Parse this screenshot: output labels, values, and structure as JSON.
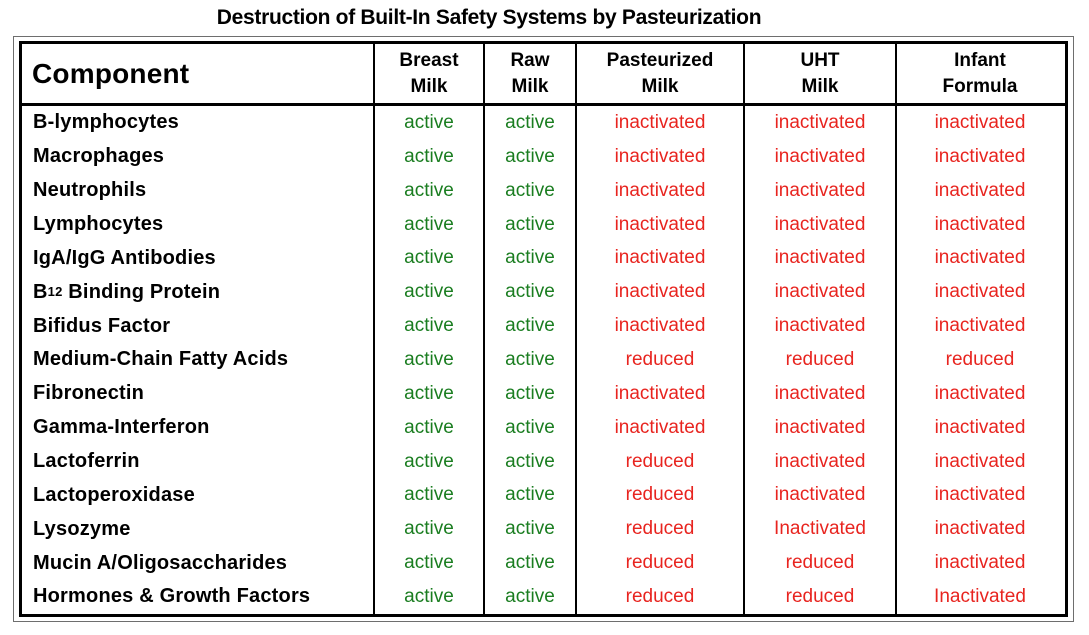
{
  "title": "Destruction of Built-In Safety Systems by Pasteurization",
  "colors": {
    "active_green": "#1a7d20",
    "destroyed_red": "#e8241f",
    "text_black": "#000000",
    "border_black": "#000000"
  },
  "table": {
    "component_header": "Component",
    "milk_columns": [
      {
        "line1": "Breast",
        "line2": "Milk"
      },
      {
        "line1": "Raw",
        "line2": "Milk"
      },
      {
        "line1": "Pasteurized",
        "line2": "Milk"
      },
      {
        "line1": "UHT",
        "line2": "Milk"
      },
      {
        "line1": "Infant",
        "line2": "Formula"
      }
    ],
    "rows": [
      {
        "name": "B-lymphocytes",
        "values": [
          "active",
          "active",
          "inactivated",
          "inactivated",
          "inactivated"
        ]
      },
      {
        "name": "Macrophages",
        "values": [
          "active",
          "active",
          "inactivated",
          "inactivated",
          "inactivated"
        ]
      },
      {
        "name": "Neutrophils",
        "values": [
          "active",
          "active",
          "inactivated",
          "inactivated",
          "inactivated"
        ]
      },
      {
        "name": "Lymphocytes",
        "values": [
          "active",
          "active",
          "inactivated",
          "inactivated",
          "inactivated"
        ]
      },
      {
        "name": "IgA/IgG Antibodies",
        "values": [
          "active",
          "active",
          "inactivated",
          "inactivated",
          "inactivated"
        ]
      },
      {
        "name": "B",
        "sub": "12",
        "rest": " Binding Protein",
        "values": [
          "active",
          "active",
          "inactivated",
          "inactivated",
          "inactivated"
        ]
      },
      {
        "name": "Bifidus Factor",
        "values": [
          "active",
          "active",
          "inactivated",
          "inactivated",
          "inactivated"
        ]
      },
      {
        "name": "Medium-Chain Fatty Acids",
        "values": [
          "active",
          "active",
          "reduced",
          "reduced",
          "reduced"
        ]
      },
      {
        "name": "Fibronectin",
        "values": [
          "active",
          "active",
          "inactivated",
          "inactivated",
          "inactivated"
        ]
      },
      {
        "name": "Gamma-Interferon",
        "values": [
          "active",
          "active",
          "inactivated",
          "inactivated",
          "inactivated"
        ]
      },
      {
        "name": "Lactoferrin",
        "values": [
          "active",
          "active",
          "reduced",
          "inactivated",
          "inactivated"
        ]
      },
      {
        "name": "Lactoperoxidase",
        "values": [
          "active",
          "active",
          "reduced",
          "inactivated",
          "inactivated"
        ]
      },
      {
        "name": "Lysozyme",
        "values": [
          "active",
          "active",
          "reduced",
          "Inactivated",
          "inactivated"
        ]
      },
      {
        "name": "Mucin A/Oligosaccharides",
        "values": [
          "active",
          "active",
          "reduced",
          "reduced",
          "inactivated"
        ]
      },
      {
        "name": "Hormones & Growth Factors",
        "values": [
          "active",
          "active",
          "reduced",
          "reduced",
          "Inactivated"
        ]
      }
    ]
  }
}
